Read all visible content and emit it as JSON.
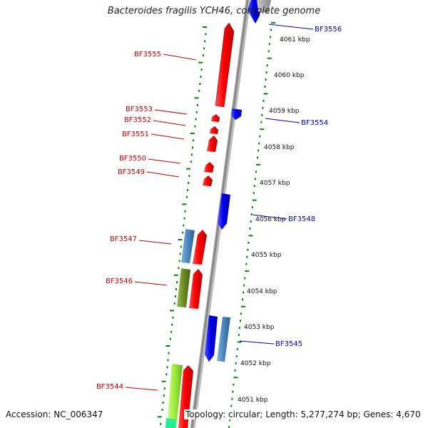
{
  "title": "Bacteroides fragilis YCH46, complete genome",
  "footer": {
    "accession": "Accession: NC_006347",
    "topology": "Topology: circular; Length: 5,277,274 bp; Genes: 4,670"
  },
  "colors": {
    "forward_gene": "#ff0000",
    "reverse_gene": "#0000ee",
    "steelblue_gene": "#4a86c0",
    "olive_gene": "#6b8e23",
    "lime_gene": "#9aee3a",
    "tick": "#008800",
    "backbone": "#999999",
    "forward_label": "#cc0000",
    "reverse_label": "#0000cc"
  },
  "kbp_ticks": [
    "4061 kbp",
    "4060 kbp",
    "4059 kbp",
    "4058 kbp",
    "4057 kbp",
    "4056 kbp",
    "4055 kbp",
    "4054 kbp",
    "4053 kbp",
    "4052 kbp",
    "4051 kbp"
  ],
  "forward_labels": [
    "BF3555",
    "BF3553",
    "BF3552",
    "BF3551",
    "BF3550",
    "BF3549",
    "BF3547",
    "BF3546",
    "BF3544"
  ],
  "reverse_labels": [
    "BF3556",
    "BF3554",
    "BF3548",
    "BF3545"
  ]
}
